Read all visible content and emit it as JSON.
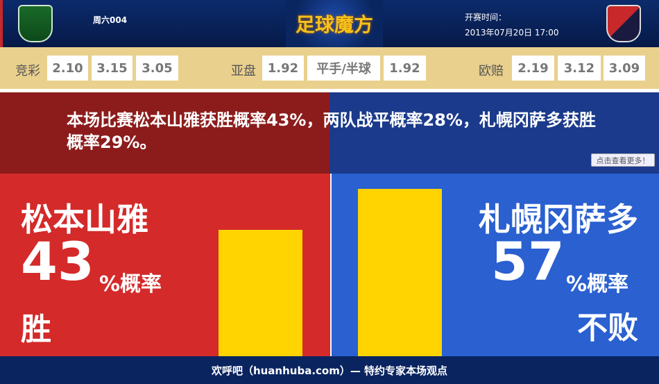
{
  "header": {
    "match_no": "周六004",
    "logo_text": "足球魔方",
    "kickoff_label": "开赛时间：",
    "kickoff_time": "2013年07月20日 17:00"
  },
  "odds": {
    "jingcai": {
      "label": "竞彩",
      "values": [
        "2.10",
        "3.15",
        "3.05"
      ]
    },
    "asian": {
      "label": "亚盘",
      "values": [
        "1.92",
        "平手/半球",
        "1.92"
      ]
    },
    "euro": {
      "label": "欧赔",
      "values": [
        "2.19",
        "3.12",
        "3.09"
      ]
    }
  },
  "summary": "本场比赛松本山雅获胜概率43%，两队战平概率28%，札幌冈萨多获胜概率29%。",
  "more_button": "点击查看更多！",
  "home": {
    "name": "松本山雅",
    "percent": "43",
    "unit": "%概率",
    "outcome": "胜",
    "bar_value": 43,
    "color": "#d42a2a"
  },
  "away": {
    "name": "札幌冈萨多",
    "percent": "57",
    "unit": "%概率",
    "outcome": "不败",
    "bar_value": 57,
    "color": "#2a60d0"
  },
  "footer": "欢呼吧（huanhuba.com）— 特约专家本场观点"
}
